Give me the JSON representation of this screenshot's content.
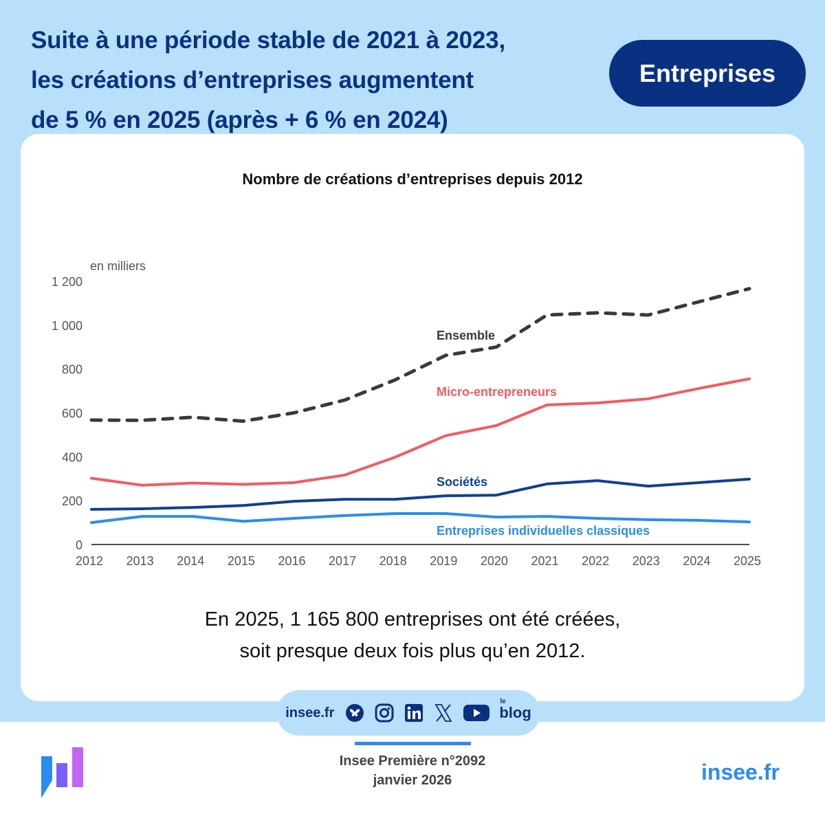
{
  "headline": {
    "line1": "Suite à une période stable de 2021 à 2023,",
    "line2": "les créations d’entreprises augmentent",
    "line3": "de 5 % en 2025 (après + 6 % en 2024)"
  },
  "badge": "Entreprises",
  "caption": {
    "line1": "En 2025, 1 165 800 entreprises ont été créées,",
    "line2": "soit presque deux fois plus qu’en 2012."
  },
  "social": {
    "site": "insee.fr",
    "icons": [
      "bluesky-icon",
      "instagram-icon",
      "linkedin-icon",
      "x-icon",
      "youtube-icon",
      "blog-icon"
    ],
    "blog_small": "le",
    "blog_label": "blog"
  },
  "footer": {
    "publication": "Insee Première n°2092",
    "date": "janvier 2026",
    "site": "insee.fr"
  },
  "colors": {
    "navy": "#0a3181",
    "light_band": "#b8e0fb",
    "accent_blue": "#2b8cf0"
  },
  "chart_data": {
    "type": "line",
    "title": "Nombre de créations d’entreprises depuis 2012",
    "ylabel": "en milliers",
    "xlabel": "",
    "ylim": [
      0,
      1200
    ],
    "yticks": [
      0,
      200,
      400,
      600,
      800,
      1000,
      1200
    ],
    "ytick_labels": [
      "0",
      "200",
      "400",
      "600",
      "800",
      "1 000",
      "1 200"
    ],
    "grid": false,
    "legend": "inline labels",
    "x": [
      "2012",
      "2013",
      "2014",
      "2015",
      "2016",
      "2017",
      "2018",
      "2019",
      "2020",
      "2021",
      "2022",
      "2023",
      "2024",
      "2025"
    ],
    "series": [
      {
        "name": "Ensemble",
        "color": "#3a3a3a",
        "dashed": true,
        "values": [
          567,
          566,
          580,
          562,
          600,
          658,
          750,
          862,
          900,
          1046,
          1056,
          1046,
          1106,
          1166
        ]
      },
      {
        "name": "Micro-entrepreneurs",
        "color": "#f25c5f",
        "dashed": false,
        "values": [
          302,
          270,
          280,
          274,
          282,
          316,
          398,
          496,
          542,
          636,
          645,
          664,
          711,
          755
        ]
      },
      {
        "name": "Sociétés",
        "color": "#10408f",
        "dashed": false,
        "values": [
          160,
          163,
          169,
          178,
          197,
          206,
          206,
          222,
          225,
          276,
          291,
          266,
          282,
          298
        ]
      },
      {
        "name": "Entreprises individuelles classiques",
        "color": "#2b8cf0",
        "dashed": false,
        "values": [
          100,
          128,
          128,
          106,
          119,
          132,
          141,
          141,
          125,
          128,
          119,
          113,
          110,
          103
        ]
      }
    ]
  }
}
